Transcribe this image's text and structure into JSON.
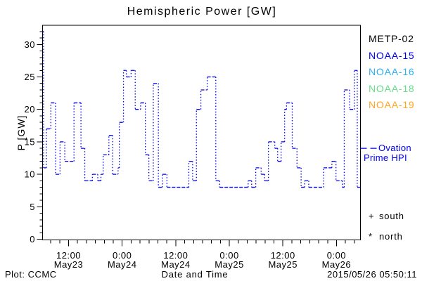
{
  "title": "Hemispheric Power [GW]",
  "axes": {
    "y_label": "P [GW]",
    "x_label": "Date and Time",
    "y_major_ticks": [
      0,
      5,
      10,
      15,
      20,
      25,
      30
    ],
    "y_minor_step": 1,
    "y_minor_max": 32,
    "x_major_ticks": [
      {
        "frac": 0.081,
        "time": "12:00",
        "date": "May23"
      },
      {
        "frac": 0.2499,
        "time": "0:00",
        "date": "May24"
      },
      {
        "frac": 0.4188,
        "time": "12:00",
        "date": "May24"
      },
      {
        "frac": 0.5877,
        "time": "0:00",
        "date": "May25"
      },
      {
        "frac": 0.7566,
        "time": "12:00",
        "date": "May25"
      },
      {
        "frac": 0.9255,
        "time": "0:00",
        "date": "May26"
      }
    ],
    "x_minor_step_frac": 0.028155,
    "x_minor_j_min": -2,
    "x_minor_j_max": 32
  },
  "chart_data": {
    "type": "line",
    "style": "dotted step line (solid treads, dotted risers)",
    "series_name": "Ovation Prime HPI",
    "color": "#0000EE",
    "title": "Hemispheric Power [GW]",
    "xlabel": "Date and Time",
    "ylabel": "P [GW]",
    "ylim": [
      0,
      33
    ],
    "grid": false,
    "x_range": "2015-05-23 ~06:00 UT to 2015-05-26 ~05:50 UT (~72 h)",
    "x_encoding": "frac = fraction across the time axis; value in GW holds until next frac",
    "steps_frac_gw": [
      [
        0.0,
        32
      ],
      [
        0.002,
        11
      ],
      [
        0.011,
        17
      ],
      [
        0.025,
        21
      ],
      [
        0.04,
        10
      ],
      [
        0.054,
        15
      ],
      [
        0.069,
        12
      ],
      [
        0.098,
        21
      ],
      [
        0.12,
        14
      ],
      [
        0.132,
        9
      ],
      [
        0.156,
        10
      ],
      [
        0.173,
        9
      ],
      [
        0.183,
        10
      ],
      [
        0.19,
        13
      ],
      [
        0.208,
        16
      ],
      [
        0.22,
        10
      ],
      [
        0.237,
        11
      ],
      [
        0.241,
        18
      ],
      [
        0.254,
        26
      ],
      [
        0.263,
        25
      ],
      [
        0.278,
        26
      ],
      [
        0.291,
        20
      ],
      [
        0.308,
        21
      ],
      [
        0.323,
        13
      ],
      [
        0.334,
        9
      ],
      [
        0.348,
        24
      ],
      [
        0.364,
        8
      ],
      [
        0.377,
        10
      ],
      [
        0.391,
        8
      ],
      [
        0.46,
        12
      ],
      [
        0.472,
        9
      ],
      [
        0.484,
        20
      ],
      [
        0.498,
        23
      ],
      [
        0.518,
        25
      ],
      [
        0.545,
        9
      ],
      [
        0.557,
        8
      ],
      [
        0.647,
        9
      ],
      [
        0.658,
        8
      ],
      [
        0.671,
        11
      ],
      [
        0.688,
        10
      ],
      [
        0.699,
        9
      ],
      [
        0.711,
        15
      ],
      [
        0.731,
        14
      ],
      [
        0.74,
        12
      ],
      [
        0.751,
        15
      ],
      [
        0.762,
        20
      ],
      [
        0.768,
        21
      ],
      [
        0.786,
        14
      ],
      [
        0.801,
        11
      ],
      [
        0.814,
        8
      ],
      [
        0.825,
        9
      ],
      [
        0.838,
        8
      ],
      [
        0.885,
        11
      ],
      [
        0.911,
        12
      ],
      [
        0.924,
        9
      ],
      [
        0.944,
        8
      ],
      [
        0.95,
        23
      ],
      [
        0.967,
        20
      ],
      [
        0.982,
        26
      ],
      [
        0.991,
        8
      ]
    ]
  },
  "legend": {
    "satellites": [
      {
        "label": "METP-02",
        "color": "#000000"
      },
      {
        "label": "NOAA-15",
        "color": "#0000EE"
      },
      {
        "label": "NOAA-16",
        "color": "#2EB0F0"
      },
      {
        "label": "NOAA-18",
        "color": "#66DD88"
      },
      {
        "label": "NOAA-19",
        "color": "#FFA520"
      }
    ],
    "line_legend": {
      "label_line1": "Ovation",
      "label_line2": "Prime HPI",
      "color": "#0000EE",
      "sample_gw": 14
    },
    "markers": [
      {
        "symbol": "+",
        "label": "south"
      },
      {
        "symbol": "*",
        "label": "north"
      }
    ]
  },
  "footer": {
    "left": "Plot: CCMC",
    "right": "2015/05/26 05:50:11"
  }
}
